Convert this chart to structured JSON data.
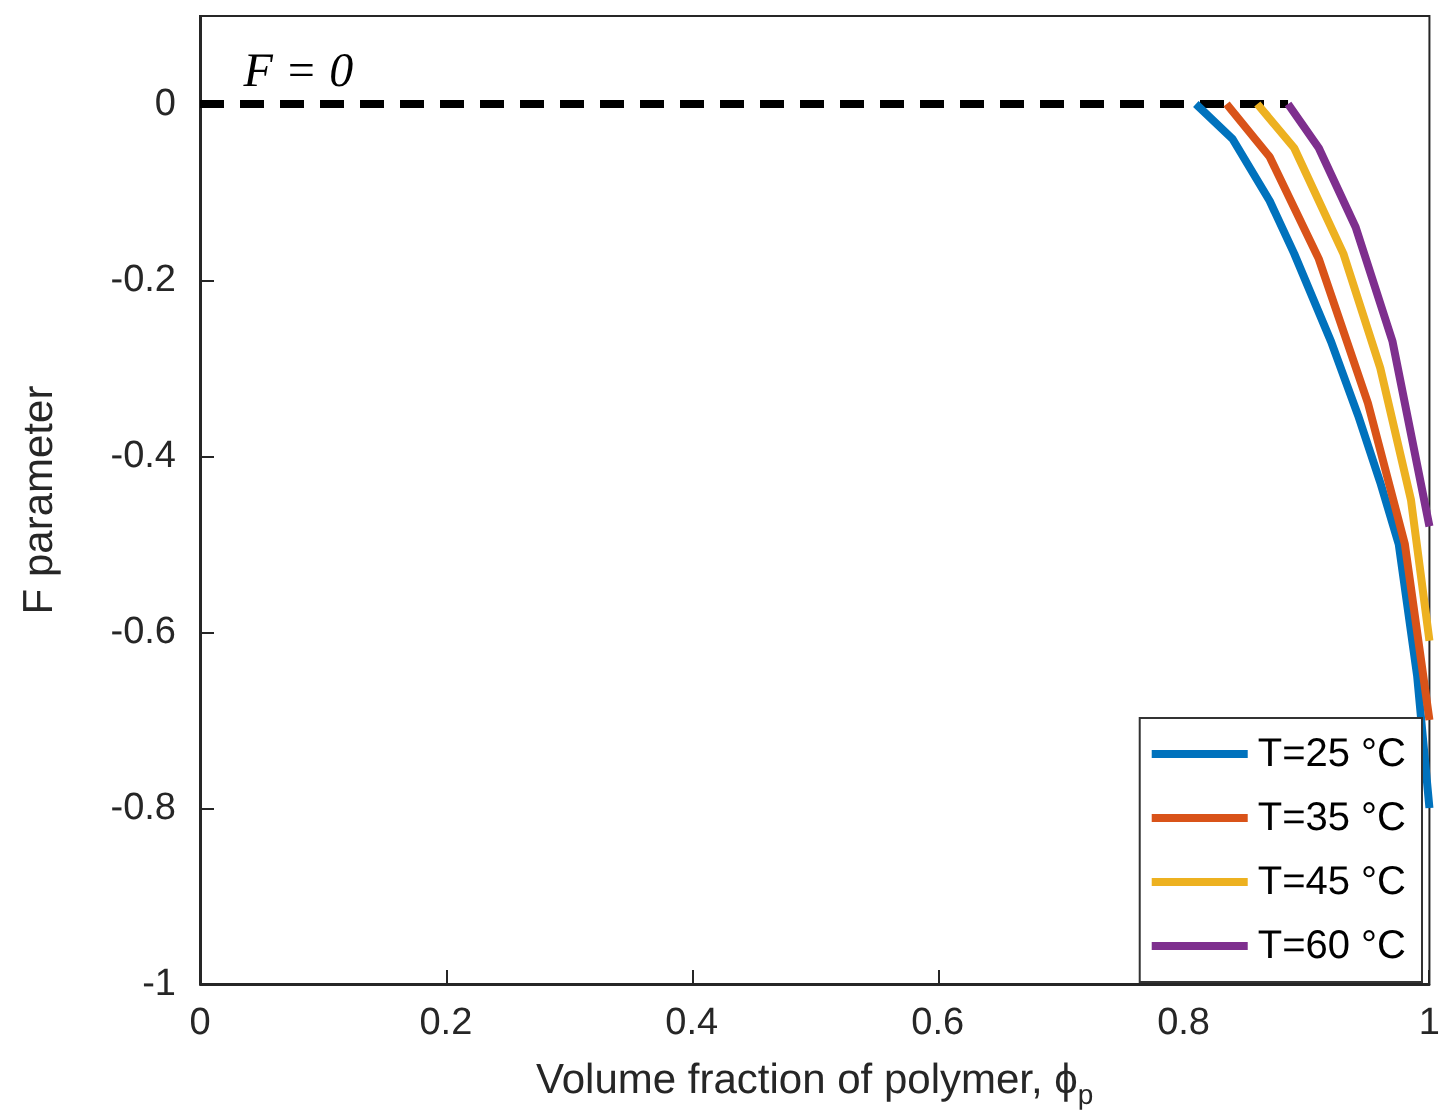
{
  "chart_data": {
    "type": "line",
    "xlabel": "Volume fraction of polymer, ϕ$_{p}$",
    "ylabel": "F parameter",
    "xlim": [
      0,
      1
    ],
    "xticks": [
      0,
      0.2,
      0.4,
      0.6,
      0.8,
      1
    ],
    "ylim": [
      -1,
      0.1
    ],
    "yticks": [
      -1,
      -0.8,
      -0.6,
      -0.4,
      -0.2,
      0
    ],
    "grid": false,
    "legend": "bottom right",
    "marker": "none",
    "annotations": [
      {
        "text": "F = 0",
        "x": 0.08,
        "y": 0
      }
    ],
    "series": [
      {
        "color": "#000000",
        "line_style": "dashed",
        "x": [
          0,
          0.885
        ],
        "values": [
          0,
          0
        ]
      },
      {
        "name": "T=25 °C",
        "color": "#0072bd",
        "x": [
          0.81,
          0.84,
          0.87,
          0.89,
          0.92,
          0.942,
          0.96,
          0.975,
          0.99,
          1
        ],
        "values": [
          0,
          -0.04,
          -0.11,
          -0.17,
          -0.27,
          -0.354,
          -0.43,
          -0.5,
          -0.65,
          -0.8
        ]
      },
      {
        "name": "T=35 °C",
        "color": "#d95319",
        "x": [
          0.835,
          0.87,
          0.91,
          0.95,
          0.98,
          1
        ],
        "values": [
          0,
          -0.06,
          -0.176,
          -0.34,
          -0.5,
          -0.7
        ]
      },
      {
        "name": "T=45 °C",
        "color": "#edb120",
        "x": [
          0.86,
          0.89,
          0.93,
          0.96,
          0.985,
          1
        ],
        "values": [
          0,
          -0.05,
          -0.17,
          -0.3,
          -0.45,
          -0.61
        ]
      },
      {
        "name": "T=60 °C",
        "color": "#7e2f8e",
        "x": [
          0.885,
          0.91,
          0.94,
          0.97,
          1
        ],
        "values": [
          0,
          -0.05,
          -0.14,
          -0.27,
          -0.48
        ]
      }
    ]
  }
}
